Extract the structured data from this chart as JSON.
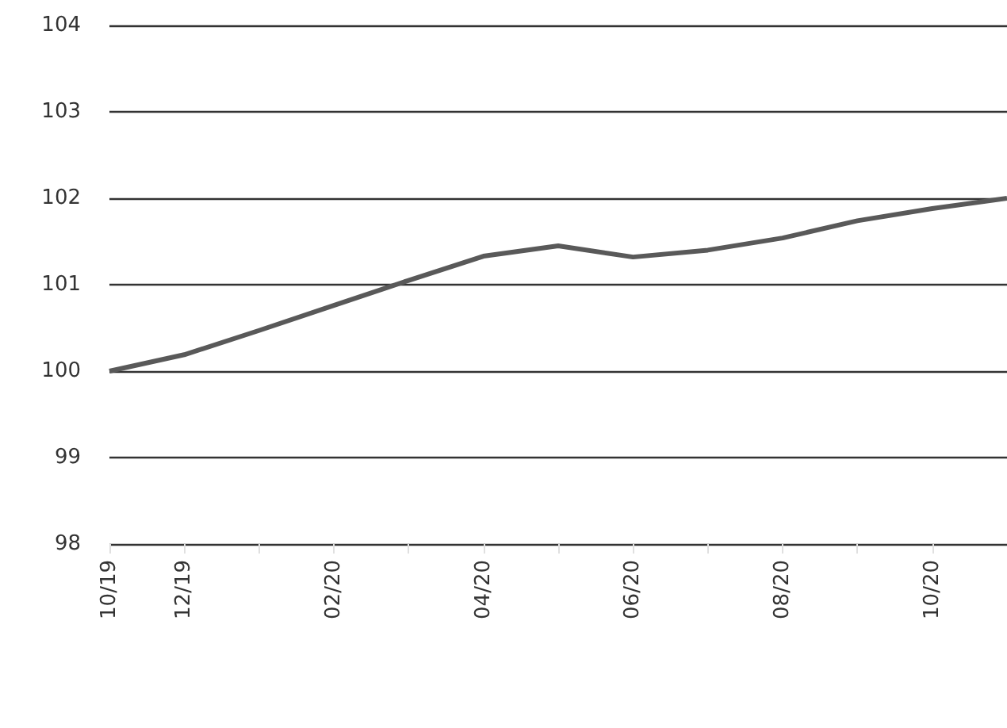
{
  "chart_data": {
    "type": "line",
    "categories": [
      "10/19",
      "12/19",
      null,
      "02/20",
      null,
      "04/20",
      null,
      "06/20",
      null,
      "08/20",
      null,
      "10/20",
      null
    ],
    "series": [
      {
        "color": "#595959",
        "values": [
          100.0,
          100.19,
          100.47,
          100.76,
          101.05,
          101.33,
          101.45,
          101.32,
          101.4,
          101.54,
          101.74,
          101.88,
          102.0
        ]
      }
    ],
    "ylim": [
      98,
      104
    ],
    "yticks": [
      98,
      99,
      100,
      101,
      102,
      103,
      104
    ],
    "grid": "y",
    "marker": "none",
    "line_style": "solid"
  }
}
